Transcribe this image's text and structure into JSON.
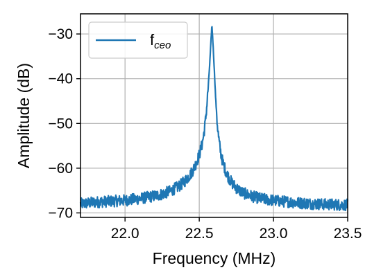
{
  "chart_data": {
    "type": "line",
    "xlabel": "Frequency (MHz)",
    "ylabel": "Amplitude (dB)",
    "xlim": [
      21.7,
      23.5
    ],
    "ylim": [
      -71,
      -25.5
    ],
    "xticks": [
      22.0,
      22.5,
      23.0,
      23.5
    ],
    "xtick_labels": [
      "22.0",
      "22.5",
      "23.0",
      "23.5"
    ],
    "yticks": [
      -70,
      -60,
      -50,
      -40,
      -30
    ],
    "ytick_labels": [
      "−70",
      "−60",
      "−50",
      "−40",
      "−30"
    ],
    "grid": true,
    "legend": {
      "position": "upper-left",
      "main": "f",
      "subscript": "ceo"
    },
    "colors": {
      "series": "#1f77b4",
      "grid": "#b0b0b0",
      "axes": "#000000",
      "legend_border": "#cccccc"
    },
    "series": [
      {
        "name": "fceo",
        "x": [
          21.7,
          21.75,
          21.8,
          21.85,
          21.9,
          21.95,
          22.0,
          22.05,
          22.1,
          22.15,
          22.2,
          22.25,
          22.3,
          22.35,
          22.38,
          22.4,
          22.42,
          22.44,
          22.46,
          22.48,
          22.5,
          22.52,
          22.53,
          22.54,
          22.55,
          22.56,
          22.57,
          22.58,
          22.585,
          22.59,
          22.6,
          22.61,
          22.62,
          22.63,
          22.64,
          22.65,
          22.66,
          22.68,
          22.7,
          22.72,
          22.75,
          22.78,
          22.8,
          22.85,
          22.9,
          22.95,
          23.0,
          23.05,
          23.1,
          23.15,
          23.2,
          23.25,
          23.3,
          23.35,
          23.4,
          23.45,
          23.5
        ],
        "y": [
          -68.0,
          -67.8,
          -67.6,
          -67.5,
          -67.4,
          -67.3,
          -67.2,
          -67.0,
          -66.8,
          -66.5,
          -66.2,
          -65.8,
          -65.2,
          -64.3,
          -63.6,
          -63.0,
          -62.2,
          -61.4,
          -60.3,
          -58.8,
          -57.0,
          -54.5,
          -52.5,
          -50.0,
          -46.5,
          -42.0,
          -37.0,
          -31.0,
          -28.0,
          -30.5,
          -37.0,
          -44.0,
          -49.5,
          -53.0,
          -55.6,
          -57.5,
          -58.8,
          -60.8,
          -62.2,
          -63.3,
          -64.4,
          -65.2,
          -65.6,
          -66.2,
          -66.7,
          -67.0,
          -67.2,
          -67.4,
          -67.5,
          -67.7,
          -67.8,
          -67.9,
          -68.0,
          -68.1,
          -68.1,
          -68.2,
          -68.2
        ]
      }
    ]
  }
}
